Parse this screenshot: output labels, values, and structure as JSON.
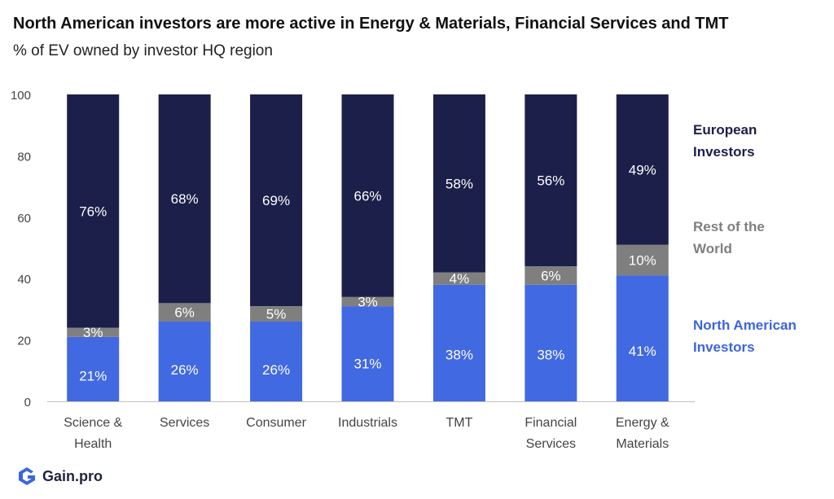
{
  "title": "North American investors are more active in Energy & Materials, Financial Services and TMT",
  "subtitle": "% of EV owned by investor HQ region",
  "brand": {
    "name": "Gain.pro",
    "icon": "gain-pro-logo-icon"
  },
  "colors": {
    "european": "#1c1f4a",
    "rest_of_world": "#7f7f7f",
    "north_american": "#4169e1",
    "legend_european": "#1c1f4a",
    "legend_rest": "#7f7f7f",
    "legend_na": "#3c64e0"
  },
  "legend": {
    "european": [
      "European",
      "Investors"
    ],
    "rest_of_world": [
      "Rest of the",
      "World"
    ],
    "north_american": [
      "North American",
      "Investors"
    ]
  },
  "chart_data": {
    "type": "bar",
    "stacked": true,
    "categories": [
      [
        "Science &",
        "Health"
      ],
      [
        "Services"
      ],
      [
        "Consumer"
      ],
      [
        "Industrials"
      ],
      [
        "TMT"
      ],
      [
        "Financial",
        "Services"
      ],
      [
        "Energy &",
        "Materials"
      ]
    ],
    "series": [
      {
        "name": "North American Investors",
        "values": [
          21,
          26,
          26,
          31,
          38,
          38,
          41
        ],
        "labels": [
          "21%",
          "26%",
          "26%",
          "31%",
          "38%",
          "38%",
          "41%"
        ]
      },
      {
        "name": "Rest of the World",
        "values": [
          3,
          6,
          5,
          3,
          4,
          6,
          10
        ],
        "labels": [
          "3%",
          "6%",
          "5%",
          "3%",
          "4%",
          "6%",
          "10%"
        ]
      },
      {
        "name": "European Investors",
        "values": [
          76,
          68,
          69,
          66,
          58,
          56,
          49
        ],
        "labels": [
          "76%",
          "68%",
          "69%",
          "66%",
          "58%",
          "56%",
          "49%"
        ]
      }
    ],
    "ylim": [
      0,
      100
    ],
    "yticks": [
      "0",
      "20",
      "40",
      "60",
      "80",
      "100"
    ],
    "grid": false,
    "legend_position": "right"
  }
}
